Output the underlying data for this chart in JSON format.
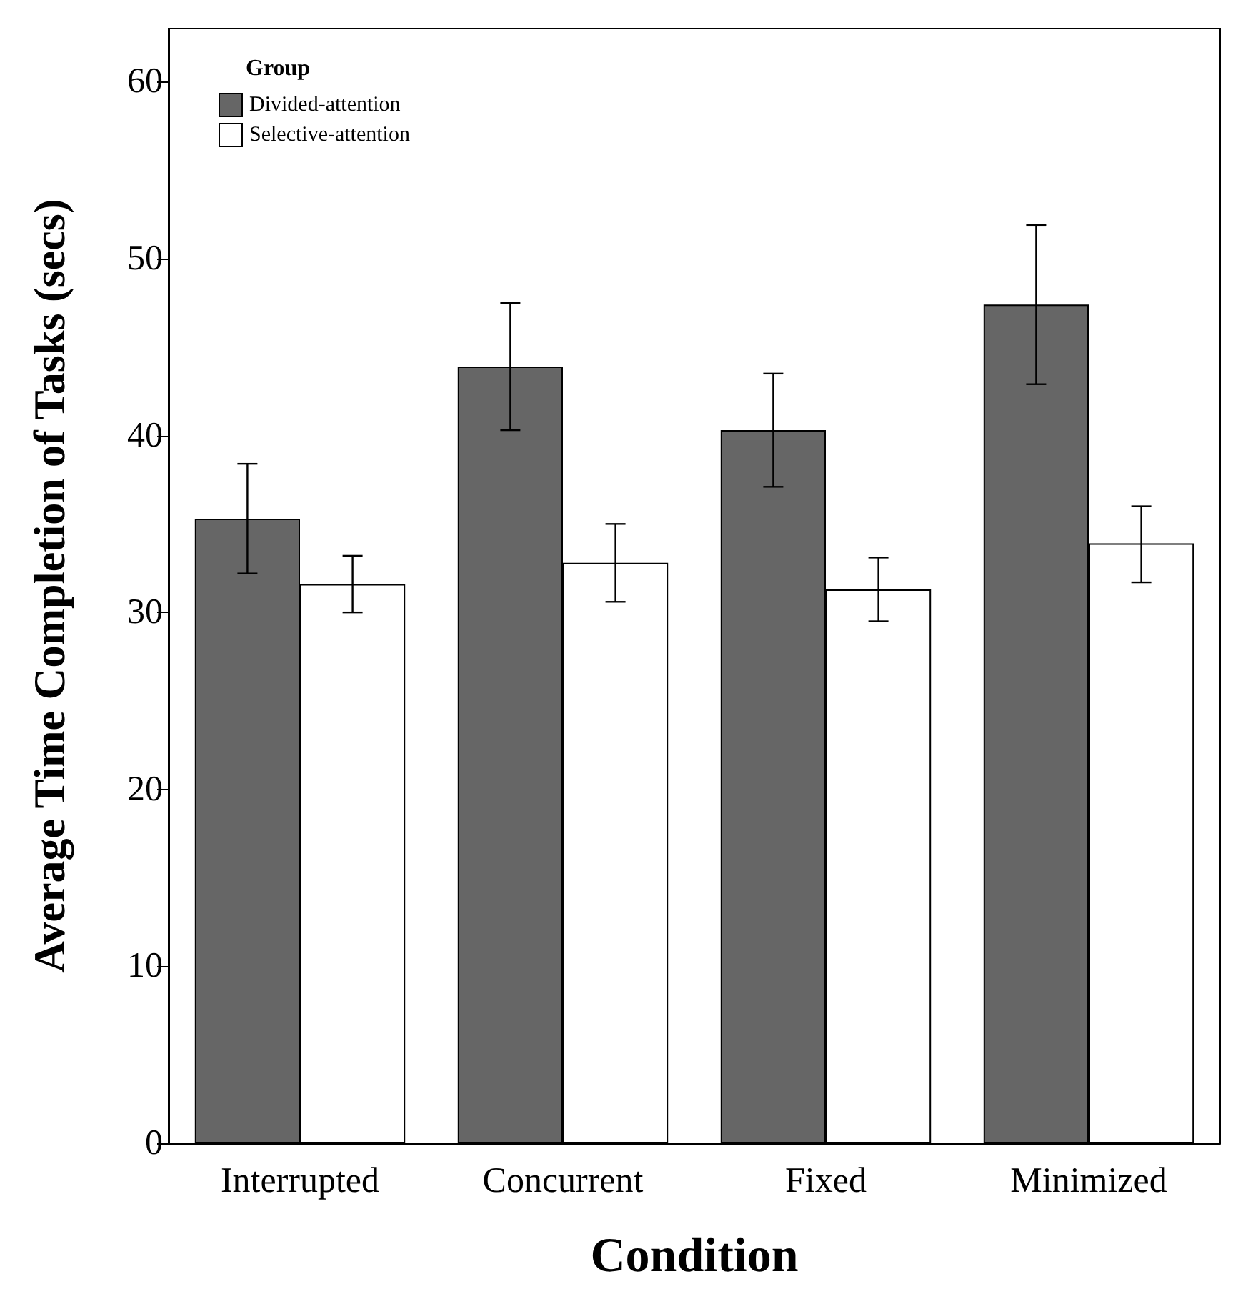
{
  "chart_data": {
    "type": "bar",
    "xlabel": "Condition",
    "ylabel": "Average Time Completion of Tasks (secs)",
    "legend_title": "Group",
    "categories": [
      "Interrupted",
      "Concurrent",
      "Fixed",
      "Minimized"
    ],
    "series": [
      {
        "name": "Divided-attention",
        "color": "#666666",
        "values": [
          35.3,
          43.9,
          40.3,
          47.4
        ],
        "errors": [
          [
            32.2,
            38.4
          ],
          [
            40.3,
            47.5
          ],
          [
            37.1,
            43.5
          ],
          [
            42.9,
            51.9
          ]
        ]
      },
      {
        "name": "Selective-attention",
        "color": "#ffffff",
        "values": [
          31.6,
          32.8,
          31.3,
          33.9
        ],
        "errors": [
          [
            30.0,
            33.2
          ],
          [
            30.6,
            35.0
          ],
          [
            29.5,
            33.1
          ],
          [
            31.7,
            36.0
          ]
        ]
      }
    ],
    "ylim": [
      0,
      63
    ],
    "yticks": [
      0,
      10,
      20,
      30,
      40,
      50,
      60
    ],
    "grid": false,
    "legend": "top left"
  }
}
